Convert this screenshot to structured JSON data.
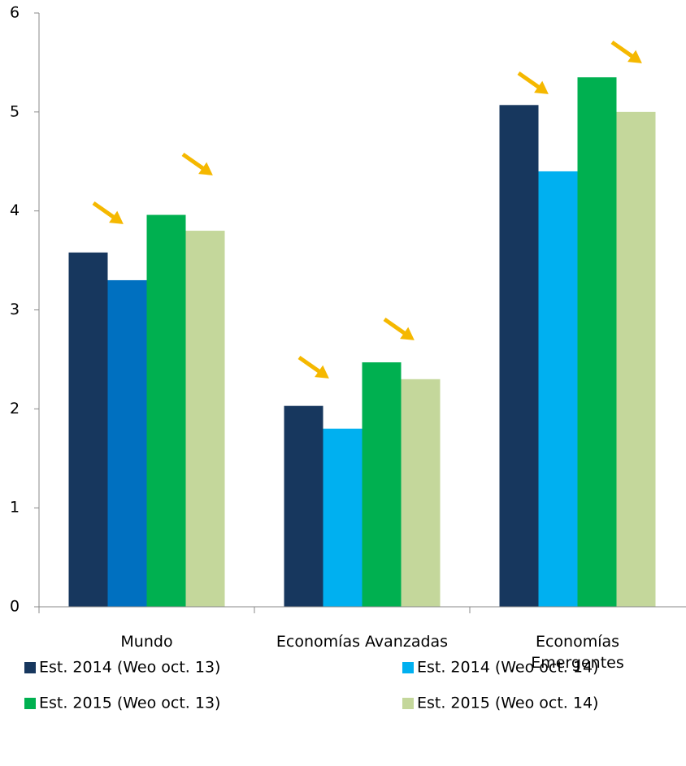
{
  "chart_data": {
    "type": "bar",
    "categories": [
      "Mundo",
      "Economías Avanzadas",
      "Economías Emergentes"
    ],
    "series": [
      {
        "name": "Est. 2014 (Weo oct. 13)",
        "color": "#17375e",
        "values": [
          3.58,
          2.03,
          5.07
        ]
      },
      {
        "name": "Est. 2014 (Weo oct. 14)",
        "color": "#00b0f0",
        "colors": [
          "#0070c0",
          "#00b0f0",
          "#00b0f0"
        ],
        "values": [
          3.3,
          1.8,
          4.4
        ]
      },
      {
        "name": "Est. 2015 (Weo oct. 13)",
        "color": "#00b050",
        "values": [
          3.96,
          2.47,
          5.35
        ]
      },
      {
        "name": "Est. 2015 (Weo oct. 14)",
        "color": "#c4d79b",
        "values": [
          3.8,
          2.3,
          5.0
        ]
      }
    ],
    "ylim": [
      0,
      6
    ],
    "yticks": [
      0,
      1,
      2,
      3,
      4,
      5,
      6
    ],
    "grid": false,
    "legend": "bottom"
  }
}
